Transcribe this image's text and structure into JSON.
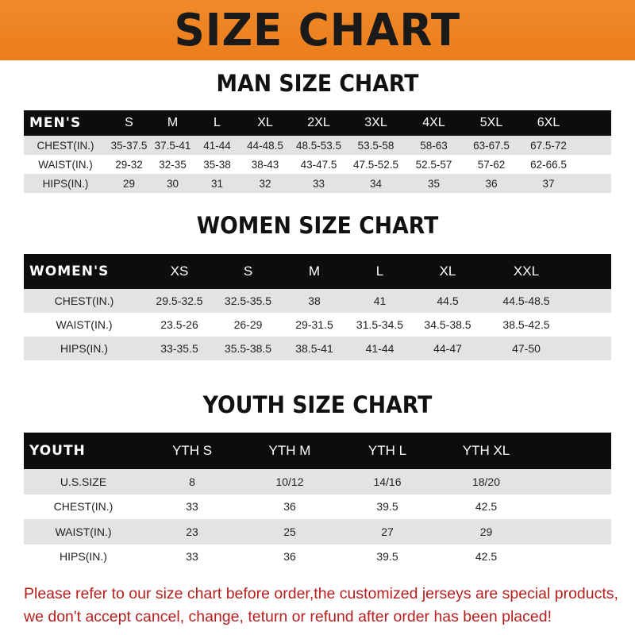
{
  "banner": "SIZE CHART",
  "men": {
    "title": "MAN SIZE CHART",
    "header": [
      "MEN'S",
      "S",
      "M",
      "L",
      "XL",
      "2XL",
      "3XL",
      "4XL",
      "5XL",
      "6XL"
    ],
    "rows": [
      [
        "CHEST(IN.)",
        "35-37.5",
        "37.5-41",
        "41-44",
        "44-48.5",
        "48.5-53.5",
        "53.5-58",
        "58-63",
        "63-67.5",
        "67.5-72"
      ],
      [
        "WAIST(IN.)",
        "29-32",
        "32-35",
        "35-38",
        "38-43",
        "43-47.5",
        "47.5-52.5",
        "52.5-57",
        "57-62",
        "62-66.5"
      ],
      [
        "HIPS(IN.)",
        "29",
        "30",
        "31",
        "32",
        "33",
        "34",
        "35",
        "36",
        "37"
      ]
    ]
  },
  "women": {
    "title": "WOMEN SIZE CHART",
    "header": [
      "WOMEN'S",
      "XS",
      "S",
      "M",
      "L",
      "XL",
      "XXL"
    ],
    "rows": [
      [
        "CHEST(IN.)",
        "29.5-32.5",
        "32.5-35.5",
        "38",
        "41",
        "44.5",
        "44.5-48.5"
      ],
      [
        "WAIST(IN.)",
        "23.5-26",
        "26-29",
        "29-31.5",
        "31.5-34.5",
        "34.5-38.5",
        "38.5-42.5"
      ],
      [
        "HIPS(IN.)",
        "33-35.5",
        "35.5-38.5",
        "38.5-41",
        "41-44",
        "44-47",
        "47-50"
      ]
    ]
  },
  "youth": {
    "title": "YOUTH SIZE CHART",
    "header": [
      "YOUTH",
      "YTH S",
      "YTH M",
      "YTH L",
      "YTH XL"
    ],
    "rows": [
      [
        "U.S.SIZE",
        "8",
        "10/12",
        "14/16",
        "18/20"
      ],
      [
        "CHEST(IN.)",
        "33",
        "36",
        "39.5",
        "42.5"
      ],
      [
        "WAIST(IN.)",
        "23",
        "25",
        "27",
        "29"
      ],
      [
        "HIPS(IN.)",
        "33",
        "36",
        "39.5",
        "42.5"
      ]
    ]
  },
  "footer": [
    "Please refer to our size chart before order,the customized jerseys are special products,",
    "we don't accept cancel, change, teturn or refund after order has been placed!"
  ],
  "colors": {
    "banner": "#ec7d1c",
    "header_row": "#0d0d0d",
    "stripe": "#e3e3e3",
    "notice": "#b5201e"
  }
}
